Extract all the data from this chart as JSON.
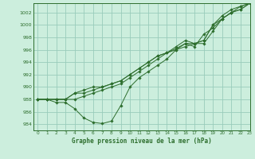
{
  "title": "Graphe pression niveau de la mer (hPa)",
  "background_color": "#cceedd",
  "grid_color": "#99ccbb",
  "line_color": "#2d6e2d",
  "xlim": [
    -0.5,
    23
  ],
  "ylim": [
    983,
    1003.5
  ],
  "yticks": [
    984,
    986,
    988,
    990,
    992,
    994,
    996,
    998,
    1000,
    1002
  ],
  "xticks": [
    0,
    1,
    2,
    3,
    4,
    5,
    6,
    7,
    8,
    9,
    10,
    11,
    12,
    13,
    14,
    15,
    16,
    17,
    18,
    19,
    20,
    21,
    22,
    23
  ],
  "xticklabels": [
    "0",
    "1",
    "2",
    "3",
    "4",
    "5",
    "6",
    "7",
    "8",
    "9",
    "10",
    "11",
    "12",
    "13",
    "14",
    "15",
    "16",
    "17",
    "18",
    "19",
    "20",
    "21",
    "22",
    "23"
  ],
  "series": [
    {
      "x": [
        0,
        1,
        2,
        3,
        4,
        5,
        6,
        7,
        8,
        9,
        10,
        11,
        12,
        13,
        14,
        15,
        16,
        17,
        18,
        19,
        20,
        21,
        22,
        23
      ],
      "y": [
        988,
        988,
        988,
        988,
        988,
        988.5,
        989,
        989.5,
        990,
        990.5,
        991.5,
        992.5,
        993.5,
        994.5,
        995.5,
        996.2,
        997,
        997,
        997,
        999,
        1001,
        1002,
        1003,
        1003.5
      ]
    },
    {
      "x": [
        0,
        1,
        2,
        3,
        4,
        5,
        6,
        7,
        8,
        9,
        10,
        11,
        12,
        13,
        14,
        15,
        16,
        17,
        18,
        19,
        20,
        21,
        22,
        23
      ],
      "y": [
        988,
        988,
        988,
        988,
        989,
        989.5,
        990,
        990,
        990.5,
        991,
        992,
        993,
        994,
        995,
        995.5,
        996.5,
        997.5,
        997,
        997.5,
        1000,
        1001.5,
        1002.5,
        1003,
        1003.5
      ]
    },
    {
      "x": [
        0,
        1,
        2,
        3,
        4,
        5,
        6,
        7,
        8,
        9,
        10,
        11,
        12,
        13,
        14,
        15,
        16,
        17,
        18,
        19,
        20,
        21,
        22,
        23
      ],
      "y": [
        988,
        988,
        987.5,
        987.5,
        986.5,
        985,
        984.3,
        984.1,
        984.5,
        987,
        990,
        991.5,
        992.5,
        993.5,
        994.5,
        996,
        997,
        996.5,
        998.5,
        999.5,
        1001,
        1002,
        1002.5,
        1003.5
      ]
    },
    {
      "x": [
        0,
        1,
        2,
        3,
        4,
        5,
        6,
        7,
        8,
        9,
        10,
        11,
        12,
        13,
        14,
        15,
        16,
        17,
        18,
        19,
        20,
        21,
        22,
        23
      ],
      "y": [
        988,
        988,
        988,
        988,
        989,
        989,
        989.5,
        990,
        990.5,
        991,
        992,
        993,
        994,
        995,
        995.5,
        996,
        996.5,
        997,
        997.5,
        1000,
        1001,
        1002,
        1002.5,
        1003.5
      ]
    }
  ]
}
